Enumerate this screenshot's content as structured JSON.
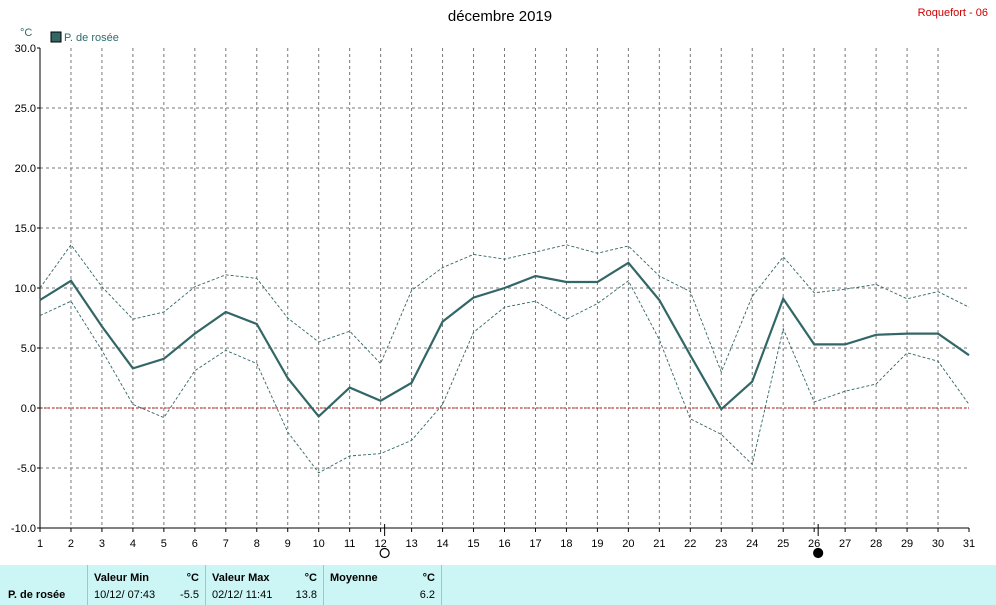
{
  "header": {
    "title": "décembre 2019",
    "station": "Roquefort - 06"
  },
  "chart_data": {
    "type": "line",
    "title": "décembre 2019",
    "ylabel": "°C",
    "xlabel": "",
    "x": [
      1,
      2,
      3,
      4,
      5,
      6,
      7,
      8,
      9,
      10,
      11,
      12,
      13,
      14,
      15,
      16,
      17,
      18,
      19,
      20,
      21,
      22,
      23,
      24,
      25,
      26,
      27,
      28,
      29,
      30,
      31
    ],
    "xlim": [
      1,
      31
    ],
    "ylim": [
      -10,
      30
    ],
    "yticks": [
      "-10.0",
      "-5.0",
      "0.0",
      "5.0",
      "10.0",
      "15.0",
      "20.0",
      "25.0",
      "30.0"
    ],
    "xticks": [
      "1",
      "2",
      "3",
      "4",
      "5",
      "6",
      "7",
      "8",
      "9",
      "10",
      "11",
      "12",
      "13",
      "14",
      "15",
      "16",
      "17",
      "18",
      "19",
      "20",
      "21",
      "22",
      "23",
      "24",
      "25",
      "26",
      "27",
      "28",
      "29",
      "30",
      "31"
    ],
    "grid": true,
    "legend": "top-left",
    "series": [
      {
        "name": "P. de rosée",
        "color": "#336666",
        "values": [
          9.0,
          10.6,
          6.8,
          3.3,
          4.1,
          6.2,
          8.0,
          7.0,
          2.5,
          -0.7,
          1.7,
          0.6,
          2.1,
          7.2,
          9.2,
          10.0,
          11.0,
          10.5,
          10.5,
          12.1,
          9.0,
          4.4,
          -0.1,
          2.2,
          9.1,
          5.3,
          5.3,
          6.1,
          6.2,
          6.2,
          4.4
        ]
      },
      {
        "color": "#336666",
        "values": [
          10.0,
          13.6,
          10.1,
          7.4,
          8.0,
          10.1,
          11.1,
          10.8,
          7.5,
          5.5,
          6.4,
          3.7,
          9.8,
          11.7,
          12.8,
          12.4,
          13.0,
          13.6,
          12.9,
          13.5,
          11.0,
          9.7,
          3.0,
          9.3,
          12.6,
          9.6,
          9.9,
          10.3,
          9.1,
          9.7,
          8.4
        ]
      },
      {
        "color": "#336666",
        "values": [
          7.7,
          8.9,
          4.8,
          0.3,
          -0.8,
          3.1,
          4.8,
          3.7,
          -2.0,
          -5.4,
          -4.0,
          -3.8,
          -2.7,
          0.3,
          6.3,
          8.4,
          8.9,
          7.4,
          8.7,
          10.6,
          5.7,
          -0.9,
          -2.2,
          -4.7,
          6.6,
          0.5,
          1.4,
          2.0,
          4.6,
          3.9,
          0.3
        ]
      }
    ],
    "reference_line": {
      "value": 0,
      "color": "#cc0000"
    },
    "moon_phases": [
      {
        "day": 12,
        "phase": "full"
      },
      {
        "day": 26,
        "phase": "new"
      }
    ]
  },
  "stats": {
    "series_name": "P. de rosée",
    "min": {
      "label": "Valeur Min",
      "unit": "°C",
      "when": "10/12/  07:43",
      "value": "-5.5"
    },
    "max": {
      "label": "Valeur Max",
      "unit": "°C",
      "when": "02/12/  11:41",
      "value": "13.8"
    },
    "avg": {
      "label": "Moyenne",
      "unit": "°C",
      "value": "6.2"
    }
  }
}
